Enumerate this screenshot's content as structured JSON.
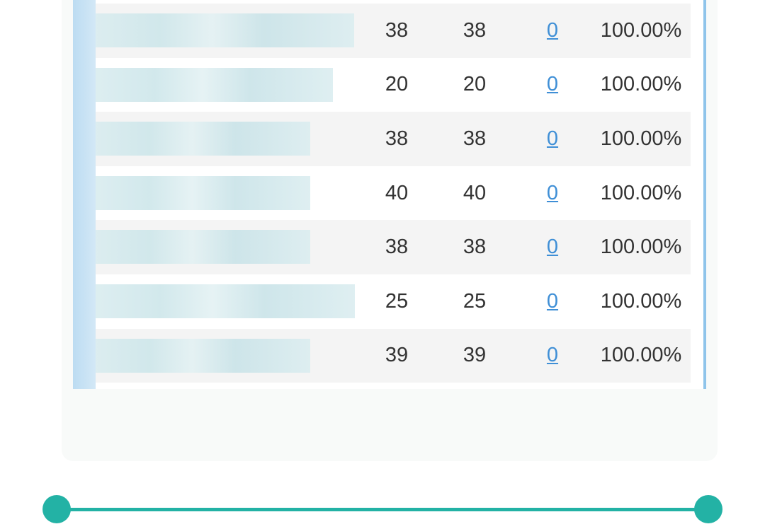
{
  "table": {
    "rows": [
      {
        "c1": "38",
        "c2": "38",
        "c3": "0",
        "c4": "100.00%"
      },
      {
        "c1": "20",
        "c2": "20",
        "c3": "0",
        "c4": "100.00%"
      },
      {
        "c1": "38",
        "c2": "38",
        "c3": "0",
        "c4": "100.00%"
      },
      {
        "c1": "40",
        "c2": "40",
        "c3": "0",
        "c4": "100.00%"
      },
      {
        "c1": "38",
        "c2": "38",
        "c3": "0",
        "c4": "100.00%"
      },
      {
        "c1": "25",
        "c2": "25",
        "c3": "0",
        "c4": "100.00%"
      },
      {
        "c1": "39",
        "c2": "39",
        "c3": "0",
        "c4": "100.00%"
      }
    ]
  },
  "colors": {
    "accent": "#23b2a5",
    "link": "#3f8fd6",
    "border": "#8fc4ea"
  }
}
